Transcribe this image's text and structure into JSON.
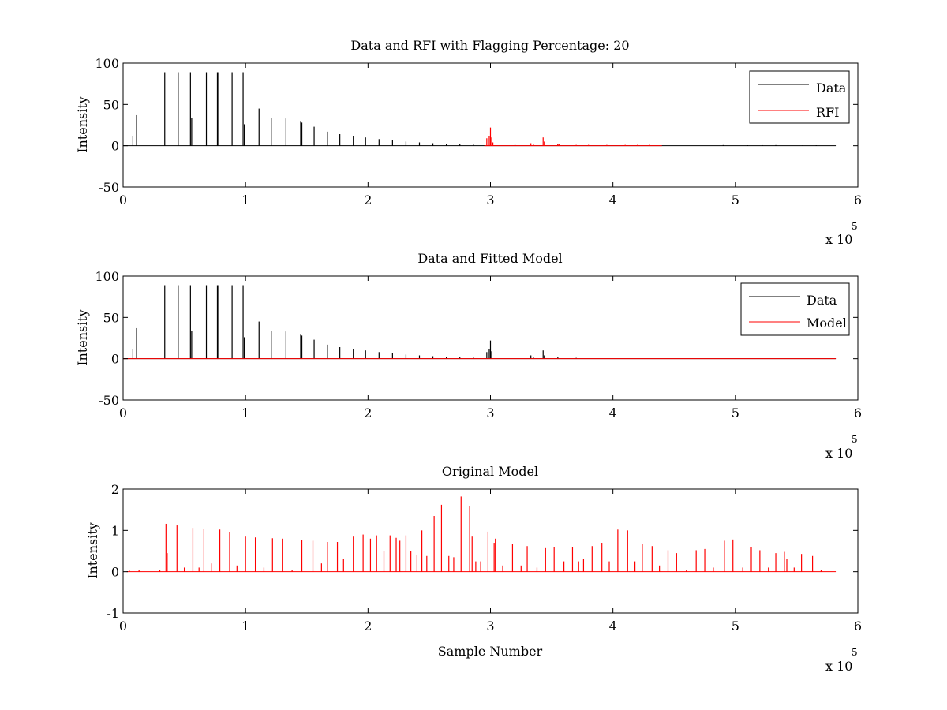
{
  "colors": {
    "data": "#000000",
    "rfi": "#ff0000",
    "model": "#ff0000",
    "background": "#ffffff"
  },
  "chart_data": [
    {
      "type": "line",
      "title": "Data and RFI with Flagging Percentage: 20",
      "xlabel": "",
      "ylabel": "Intensity",
      "xlim": [
        0,
        6
      ],
      "ylim": [
        -50,
        100
      ],
      "xticks": [
        "0",
        "1",
        "2",
        "3",
        "4",
        "5",
        "6"
      ],
      "yticks": [
        "-50",
        "0",
        "50",
        "100"
      ],
      "x_exponent_label": "x 10",
      "x_exponent_power": "5",
      "legend": {
        "position": "top-right",
        "entries": [
          "Data",
          "RFI"
        ]
      },
      "series": [
        {
          "name": "Data",
          "color_key": "data",
          "baseline": 0,
          "spikes": [
            [
              0.08,
              12
            ],
            [
              0.11,
              37
            ],
            [
              0.34,
              89
            ],
            [
              0.45,
              89
            ],
            [
              0.55,
              89
            ],
            [
              0.56,
              34
            ],
            [
              0.68,
              89
            ],
            [
              0.77,
              89
            ],
            [
              0.78,
              89
            ],
            [
              0.89,
              89
            ],
            [
              0.98,
              89
            ],
            [
              0.99,
              26
            ],
            [
              1.11,
              45
            ],
            [
              1.21,
              34
            ],
            [
              1.33,
              33
            ],
            [
              1.45,
              29
            ],
            [
              1.46,
              28
            ],
            [
              1.56,
              23
            ],
            [
              1.67,
              17
            ],
            [
              1.77,
              14
            ],
            [
              1.88,
              12
            ],
            [
              1.98,
              10
            ],
            [
              2.09,
              8
            ],
            [
              2.2,
              7
            ],
            [
              2.31,
              5
            ],
            [
              2.42,
              4
            ],
            [
              2.53,
              3
            ],
            [
              2.64,
              2.5
            ],
            [
              2.75,
              2
            ],
            [
              2.86,
              1.5
            ],
            [
              3.2,
              1
            ],
            [
              3.55,
              1.5
            ],
            [
              4.9,
              0.8
            ],
            [
              5.1,
              0.6
            ],
            [
              5.22,
              0.7
            ],
            [
              5.33,
              0.8
            ],
            [
              5.55,
              0.5
            ],
            [
              5.66,
              0.6
            ]
          ]
        },
        {
          "name": "RFI",
          "color_key": "rfi",
          "baseline": 0,
          "range": [
            2.95,
            4.4
          ],
          "spikes": [
            [
              2.97,
              9
            ],
            [
              2.99,
              12
            ],
            [
              3.0,
              22
            ],
            [
              3.01,
              10
            ],
            [
              3.02,
              4
            ],
            [
              3.33,
              3
            ],
            [
              3.35,
              2
            ],
            [
              3.43,
              10
            ],
            [
              3.44,
              5
            ],
            [
              3.55,
              2
            ],
            [
              3.56,
              1.5
            ],
            [
              3.7,
              1
            ],
            [
              3.8,
              1
            ],
            [
              3.95,
              1
            ],
            [
              4.1,
              1
            ],
            [
              4.2,
              1
            ],
            [
              4.3,
              1
            ]
          ]
        }
      ]
    },
    {
      "type": "line",
      "title": "Data and Fitted Model",
      "xlabel": "",
      "ylabel": "Intensity",
      "xlim": [
        0,
        6
      ],
      "ylim": [
        -50,
        100
      ],
      "xticks": [
        "0",
        "1",
        "2",
        "3",
        "4",
        "5",
        "6"
      ],
      "yticks": [
        "-50",
        "0",
        "50",
        "100"
      ],
      "x_exponent_label": "x 10",
      "x_exponent_power": "5",
      "legend": {
        "position": "top-right",
        "entries": [
          "Data",
          "Model"
        ]
      },
      "series": [
        {
          "name": "Data",
          "color_key": "data",
          "baseline": 0,
          "spikes": [
            [
              0.08,
              12
            ],
            [
              0.11,
              37
            ],
            [
              0.34,
              89
            ],
            [
              0.45,
              89
            ],
            [
              0.55,
              89
            ],
            [
              0.56,
              34
            ],
            [
              0.68,
              89
            ],
            [
              0.77,
              89
            ],
            [
              0.78,
              89
            ],
            [
              0.89,
              89
            ],
            [
              0.98,
              89
            ],
            [
              0.99,
              26
            ],
            [
              1.11,
              45
            ],
            [
              1.21,
              34
            ],
            [
              1.33,
              33
            ],
            [
              1.45,
              29
            ],
            [
              1.46,
              28
            ],
            [
              1.56,
              23
            ],
            [
              1.67,
              17
            ],
            [
              1.77,
              14
            ],
            [
              1.88,
              12
            ],
            [
              1.98,
              10
            ],
            [
              2.09,
              8
            ],
            [
              2.2,
              7
            ],
            [
              2.31,
              5
            ],
            [
              2.42,
              4
            ],
            [
              2.53,
              3
            ],
            [
              2.64,
              2.5
            ],
            [
              2.75,
              2
            ],
            [
              2.86,
              1.5
            ],
            [
              2.97,
              8
            ],
            [
              2.99,
              12
            ],
            [
              3.0,
              22
            ],
            [
              3.01,
              9
            ],
            [
              3.33,
              4
            ],
            [
              3.35,
              2
            ],
            [
              3.43,
              10
            ],
            [
              3.44,
              4
            ],
            [
              3.55,
              2
            ],
            [
              3.7,
              1
            ]
          ]
        },
        {
          "name": "Model",
          "color_key": "model",
          "baseline": 0,
          "flat": true,
          "range": [
            0.0,
            5.82
          ]
        }
      ]
    },
    {
      "type": "line",
      "title": "Original Model",
      "xlabel": "Sample Number",
      "ylabel": "Intensity",
      "xlim": [
        0,
        6
      ],
      "ylim": [
        -1,
        2
      ],
      "xticks": [
        "0",
        "1",
        "2",
        "3",
        "4",
        "5",
        "6"
      ],
      "yticks": [
        "-1",
        "0",
        "1",
        "2"
      ],
      "x_exponent_label": "x 10",
      "x_exponent_power": "5",
      "legend": null,
      "series": [
        {
          "name": "",
          "color_key": "model",
          "baseline": 0,
          "range": [
            0.03,
            5.82
          ],
          "spikes": [
            [
              0.05,
              0.05
            ],
            [
              0.13,
              0.05
            ],
            [
              0.3,
              0.05
            ],
            [
              0.35,
              1.16
            ],
            [
              0.36,
              0.45
            ],
            [
              0.44,
              1.12
            ],
            [
              0.5,
              0.1
            ],
            [
              0.57,
              1.06
            ],
            [
              0.62,
              0.1
            ],
            [
              0.66,
              1.04
            ],
            [
              0.72,
              0.2
            ],
            [
              0.79,
              1.02
            ],
            [
              0.87,
              0.95
            ],
            [
              0.93,
              0.15
            ],
            [
              1.0,
              0.85
            ],
            [
              1.08,
              0.83
            ],
            [
              1.15,
              0.1
            ],
            [
              1.22,
              0.81
            ],
            [
              1.3,
              0.8
            ],
            [
              1.38,
              0.05
            ],
            [
              1.46,
              0.77
            ],
            [
              1.55,
              0.75
            ],
            [
              1.62,
              0.2
            ],
            [
              1.67,
              0.72
            ],
            [
              1.75,
              0.72
            ],
            [
              1.8,
              0.3
            ],
            [
              1.88,
              0.85
            ],
            [
              1.96,
              0.9
            ],
            [
              2.02,
              0.8
            ],
            [
              2.07,
              0.88
            ],
            [
              2.13,
              0.5
            ],
            [
              2.18,
              0.88
            ],
            [
              2.23,
              0.82
            ],
            [
              2.26,
              0.75
            ],
            [
              2.31,
              0.88
            ],
            [
              2.35,
              0.5
            ],
            [
              2.4,
              0.4
            ],
            [
              2.44,
              1.0
            ],
            [
              2.48,
              0.38
            ],
            [
              2.54,
              1.35
            ],
            [
              2.6,
              1.62
            ],
            [
              2.66,
              0.38
            ],
            [
              2.7,
              0.35
            ],
            [
              2.76,
              1.82
            ],
            [
              2.83,
              1.58
            ],
            [
              2.85,
              0.85
            ],
            [
              2.88,
              0.25
            ],
            [
              2.92,
              0.25
            ],
            [
              2.98,
              0.97
            ],
            [
              3.03,
              0.7
            ],
            [
              3.04,
              0.8
            ],
            [
              3.1,
              0.15
            ],
            [
              3.18,
              0.67
            ],
            [
              3.25,
              0.15
            ],
            [
              3.3,
              0.62
            ],
            [
              3.38,
              0.1
            ],
            [
              3.45,
              0.57
            ],
            [
              3.52,
              0.6
            ],
            [
              3.6,
              0.25
            ],
            [
              3.67,
              0.6
            ],
            [
              3.72,
              0.25
            ],
            [
              3.76,
              0.3
            ],
            [
              3.83,
              0.62
            ],
            [
              3.91,
              0.7
            ],
            [
              3.97,
              0.25
            ],
            [
              4.04,
              1.02
            ],
            [
              4.12,
              1.0
            ],
            [
              4.18,
              0.25
            ],
            [
              4.24,
              0.67
            ],
            [
              4.32,
              0.62
            ],
            [
              4.38,
              0.15
            ],
            [
              4.45,
              0.52
            ],
            [
              4.52,
              0.45
            ],
            [
              4.6,
              0.05
            ],
            [
              4.68,
              0.52
            ],
            [
              4.75,
              0.55
            ],
            [
              4.82,
              0.1
            ],
            [
              4.91,
              0.75
            ],
            [
              4.98,
              0.78
            ],
            [
              5.06,
              0.1
            ],
            [
              5.13,
              0.6
            ],
            [
              5.2,
              0.52
            ],
            [
              5.27,
              0.1
            ],
            [
              5.33,
              0.45
            ],
            [
              5.4,
              0.48
            ],
            [
              5.42,
              0.3
            ],
            [
              5.48,
              0.1
            ],
            [
              5.54,
              0.43
            ],
            [
              5.63,
              0.38
            ],
            [
              5.7,
              0.05
            ]
          ]
        }
      ]
    }
  ]
}
